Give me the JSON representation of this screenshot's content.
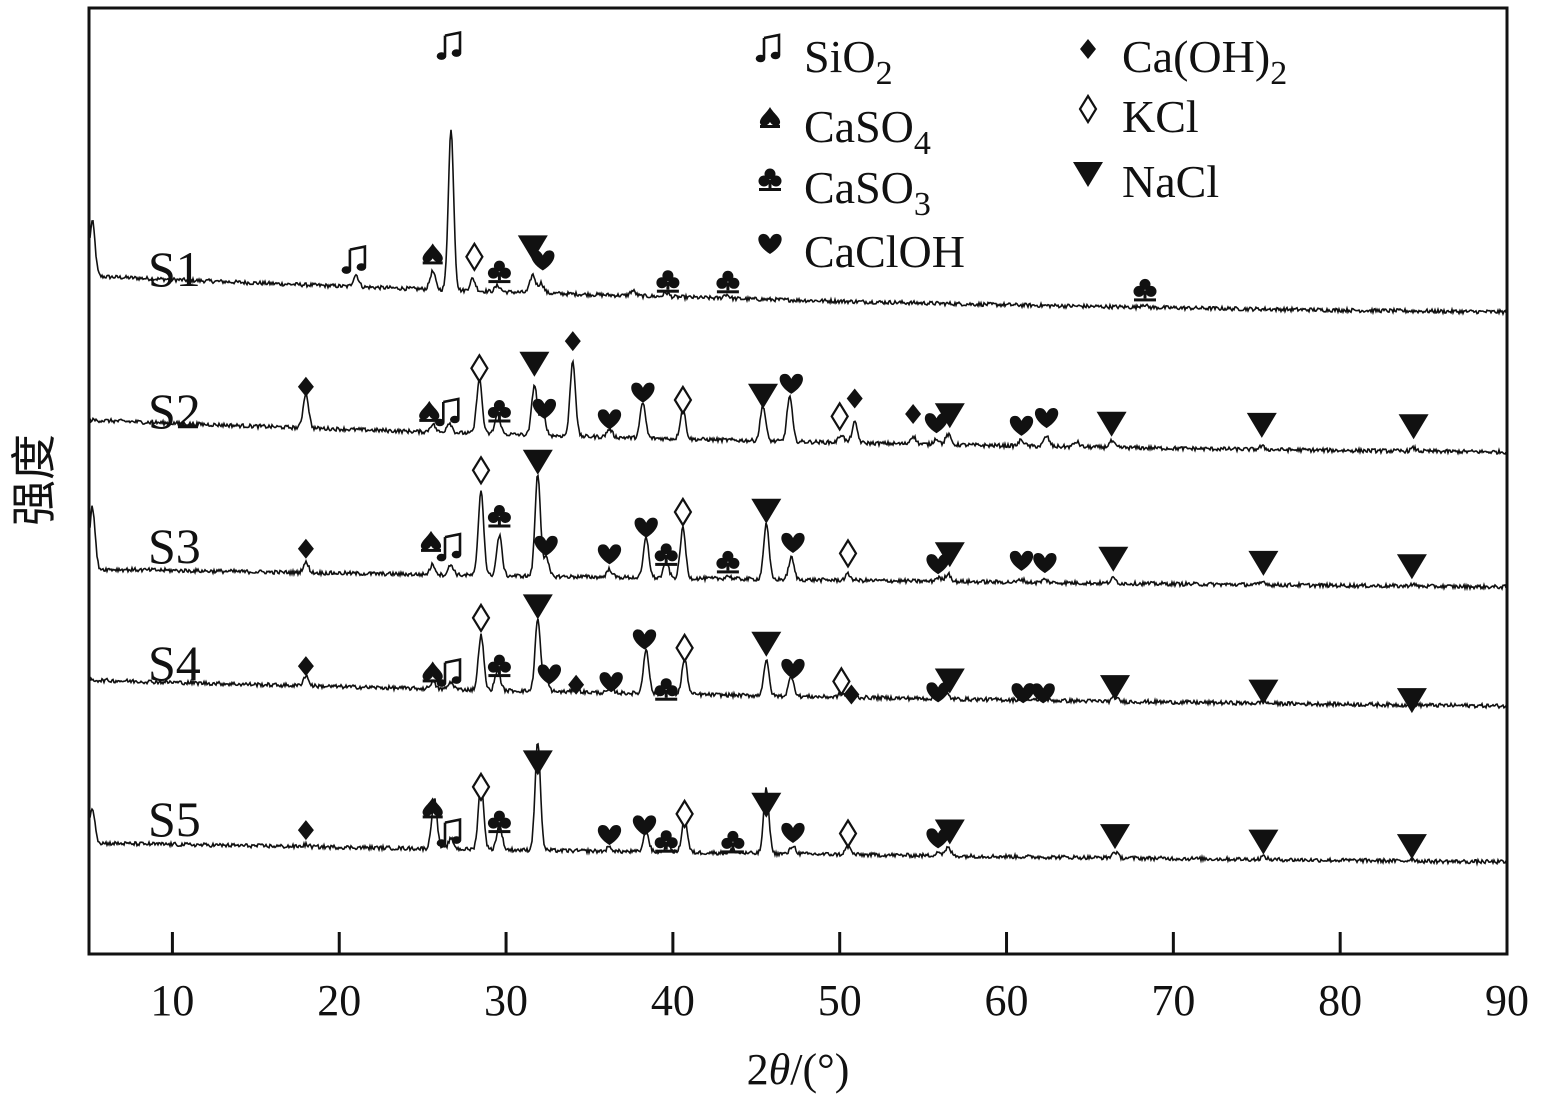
{
  "chart_data": {
    "type": "line",
    "title": "",
    "xlabel_prefix": "2",
    "xlabel_theta": "θ",
    "xlabel_suffix": "/(°)",
    "ylabel": "强度",
    "xlim": [
      5,
      90
    ],
    "xticks": [
      "10",
      "20",
      "30",
      "40",
      "50",
      "60",
      "70",
      "80",
      "90"
    ],
    "grid": false,
    "legend_position": "top-right",
    "legend": [
      {
        "symbol": "SiO2",
        "base": "SiO",
        "sub": "2"
      },
      {
        "symbol": "CaSO4",
        "base": "CaSO",
        "sub": "4"
      },
      {
        "symbol": "CaSO3",
        "base": "CaSO",
        "sub": "3"
      },
      {
        "symbol": "CaClOH",
        "base": "CaClOH",
        "sub": ""
      },
      {
        "symbol": "CaOH2",
        "base": "Ca(OH)",
        "sub": "2"
      },
      {
        "symbol": "KCl",
        "base": "KCl",
        "sub": ""
      },
      {
        "symbol": "NaCl",
        "base": "NaCl",
        "sub": ""
      }
    ],
    "series": [
      {
        "name": "S1",
        "baseline_start": 0.22,
        "baseline_end": 0.0,
        "peaks": [
          [
            5.2,
            0.55
          ],
          [
            21.0,
            0.12
          ],
          [
            25.6,
            0.18
          ],
          [
            26.7,
            1.6
          ],
          [
            28.0,
            0.12
          ],
          [
            29.5,
            0.06
          ],
          [
            31.6,
            0.18
          ],
          [
            32.1,
            0.1
          ],
          [
            37.6,
            0.05
          ],
          [
            39.6,
            0.04
          ],
          [
            43.2,
            0.04
          ],
          [
            68.2,
            0.03
          ]
        ],
        "markers": [
          {
            "sym": "SiO2",
            "x": 21.0,
            "h": 0.4
          },
          {
            "sym": "CaSO4",
            "x": 25.6,
            "h": 0.46
          },
          {
            "sym": "SiO2",
            "x": 26.7,
            "h": 2.55
          },
          {
            "sym": "KCl",
            "x": 28.1,
            "h": 0.45
          },
          {
            "sym": "CaSO3",
            "x": 29.6,
            "h": 0.3
          },
          {
            "sym": "NaCl",
            "x": 31.6,
            "h": 0.55
          },
          {
            "sym": "CaClOH",
            "x": 32.2,
            "h": 0.42
          },
          {
            "sym": "CaSO3",
            "x": 39.7,
            "h": 0.22
          },
          {
            "sym": "CaSO3",
            "x": 43.3,
            "h": 0.22
          },
          {
            "sym": "CaSO3",
            "x": 68.3,
            "h": 0.18
          }
        ]
      },
      {
        "name": "S2",
        "baseline_start": 0.2,
        "baseline_end": 0.0,
        "peaks": [
          [
            18.0,
            0.35
          ],
          [
            25.6,
            0.08
          ],
          [
            26.6,
            0.1
          ],
          [
            28.4,
            0.55
          ],
          [
            29.5,
            0.2
          ],
          [
            31.7,
            0.5
          ],
          [
            32.2,
            0.25
          ],
          [
            34.0,
            0.75
          ],
          [
            36.2,
            0.08
          ],
          [
            38.2,
            0.35
          ],
          [
            40.6,
            0.3
          ],
          [
            45.4,
            0.35
          ],
          [
            47.0,
            0.45
          ],
          [
            50.1,
            0.08
          ],
          [
            50.9,
            0.2
          ],
          [
            54.4,
            0.08
          ],
          [
            55.8,
            0.06
          ],
          [
            56.5,
            0.1
          ],
          [
            60.9,
            0.06
          ],
          [
            62.4,
            0.1
          ],
          [
            64.2,
            0.05
          ],
          [
            66.3,
            0.06
          ],
          [
            75.3,
            0.03
          ],
          [
            84.4,
            0.03
          ]
        ],
        "markers": [
          {
            "sym": "CaOH2",
            "x": 18.0,
            "h": 0.55
          },
          {
            "sym": "CaSO4",
            "x": 25.4,
            "h": 0.3
          },
          {
            "sym": "SiO2",
            "x": 26.6,
            "h": 0.3
          },
          {
            "sym": "KCl",
            "x": 28.4,
            "h": 0.75
          },
          {
            "sym": "CaSO3",
            "x": 29.6,
            "h": 0.32
          },
          {
            "sym": "NaCl",
            "x": 31.7,
            "h": 0.8
          },
          {
            "sym": "CaClOH",
            "x": 32.3,
            "h": 0.35
          },
          {
            "sym": "CaOH2",
            "x": 34.0,
            "h": 1.03
          },
          {
            "sym": "CaClOH",
            "x": 36.2,
            "h": 0.25
          },
          {
            "sym": "CaClOH",
            "x": 38.2,
            "h": 0.52
          },
          {
            "sym": "KCl",
            "x": 40.6,
            "h": 0.45
          },
          {
            "sym": "NaCl",
            "x": 45.4,
            "h": 0.5
          },
          {
            "sym": "CaClOH",
            "x": 47.1,
            "h": 0.62
          },
          {
            "sym": "KCl",
            "x": 50.0,
            "h": 0.3
          },
          {
            "sym": "CaOH2",
            "x": 50.9,
            "h": 0.48
          },
          {
            "sym": "CaOH2",
            "x": 54.4,
            "h": 0.33
          },
          {
            "sym": "CaClOH",
            "x": 55.8,
            "h": 0.24
          },
          {
            "sym": "NaCl",
            "x": 56.6,
            "h": 0.32
          },
          {
            "sym": "CaClOH",
            "x": 60.9,
            "h": 0.22
          },
          {
            "sym": "CaClOH",
            "x": 62.4,
            "h": 0.3
          },
          {
            "sym": "NaCl",
            "x": 66.3,
            "h": 0.25
          },
          {
            "sym": "NaCl",
            "x": 75.3,
            "h": 0.25
          },
          {
            "sym": "NaCl",
            "x": 84.4,
            "h": 0.25
          }
        ]
      },
      {
        "name": "S3",
        "baseline_start": 0.06,
        "baseline_end": 0.0,
        "peaks": [
          [
            5.2,
            0.62
          ],
          [
            18.0,
            0.1
          ],
          [
            25.6,
            0.1
          ],
          [
            26.7,
            0.1
          ],
          [
            28.5,
            0.85
          ],
          [
            29.6,
            0.4
          ],
          [
            31.9,
            1.02
          ],
          [
            32.4,
            0.18
          ],
          [
            36.2,
            0.08
          ],
          [
            38.4,
            0.4
          ],
          [
            39.6,
            0.15
          ],
          [
            40.6,
            0.5
          ],
          [
            43.3,
            0.03
          ],
          [
            45.6,
            0.55
          ],
          [
            47.1,
            0.22
          ],
          [
            50.5,
            0.06
          ],
          [
            55.9,
            0.04
          ],
          [
            56.5,
            0.08
          ],
          [
            60.9,
            0.03
          ],
          [
            62.3,
            0.03
          ],
          [
            66.4,
            0.05
          ],
          [
            75.4,
            0.03
          ],
          [
            84.3,
            0.02
          ]
        ],
        "markers": [
          {
            "sym": "CaOH2",
            "x": 18.0,
            "h": 0.28
          },
          {
            "sym": "CaSO4",
            "x": 25.5,
            "h": 0.35
          },
          {
            "sym": "SiO2",
            "x": 26.7,
            "h": 0.3
          },
          {
            "sym": "KCl",
            "x": 28.5,
            "h": 1.08
          },
          {
            "sym": "CaSO3",
            "x": 29.6,
            "h": 0.62
          },
          {
            "sym": "NaCl",
            "x": 31.9,
            "h": 1.17
          },
          {
            "sym": "CaClOH",
            "x": 32.4,
            "h": 0.33
          },
          {
            "sym": "CaClOH",
            "x": 36.2,
            "h": 0.25
          },
          {
            "sym": "CaClOH",
            "x": 38.4,
            "h": 0.52
          },
          {
            "sym": "CaSO3",
            "x": 39.6,
            "h": 0.25
          },
          {
            "sym": "KCl",
            "x": 40.6,
            "h": 0.68
          },
          {
            "sym": "CaSO3",
            "x": 43.3,
            "h": 0.18
          },
          {
            "sym": "NaCl",
            "x": 45.6,
            "h": 0.7
          },
          {
            "sym": "CaClOH",
            "x": 47.2,
            "h": 0.38
          },
          {
            "sym": "KCl",
            "x": 50.5,
            "h": 0.28
          },
          {
            "sym": "CaClOH",
            "x": 55.9,
            "h": 0.18
          },
          {
            "sym": "NaCl",
            "x": 56.6,
            "h": 0.28
          },
          {
            "sym": "CaClOH",
            "x": 60.9,
            "h": 0.22
          },
          {
            "sym": "CaClOH",
            "x": 62.3,
            "h": 0.2
          },
          {
            "sym": "NaCl",
            "x": 66.4,
            "h": 0.25
          },
          {
            "sym": "NaCl",
            "x": 75.4,
            "h": 0.22
          },
          {
            "sym": "NaCl",
            "x": 84.3,
            "h": 0.2
          }
        ]
      },
      {
        "name": "S4",
        "baseline_start": 0.12,
        "baseline_end": 0.0,
        "peaks": [
          [
            18.0,
            0.1
          ],
          [
            25.6,
            0.07
          ],
          [
            26.7,
            0.07
          ],
          [
            28.5,
            0.55
          ],
          [
            29.5,
            0.2
          ],
          [
            31.9,
            0.72
          ],
          [
            32.4,
            0.12
          ],
          [
            34.2,
            0.05
          ],
          [
            36.3,
            0.05
          ],
          [
            38.4,
            0.45
          ],
          [
            39.6,
            0.1
          ],
          [
            40.7,
            0.35
          ],
          [
            45.6,
            0.35
          ],
          [
            47.1,
            0.2
          ],
          [
            50.1,
            0.04
          ],
          [
            50.7,
            0.06
          ],
          [
            55.8,
            0.04
          ],
          [
            56.4,
            0.05
          ],
          [
            61.0,
            0.03
          ],
          [
            62.2,
            0.03
          ],
          [
            66.5,
            0.04
          ],
          [
            75.4,
            0.02
          ],
          [
            84.3,
            0.02
          ]
        ],
        "markers": [
          {
            "sym": "CaOH2",
            "x": 18.0,
            "h": 0.28
          },
          {
            "sym": "CaSO4",
            "x": 25.6,
            "h": 0.22
          },
          {
            "sym": "SiO2",
            "x": 26.7,
            "h": 0.22
          },
          {
            "sym": "KCl",
            "x": 28.5,
            "h": 0.78
          },
          {
            "sym": "CaSO3",
            "x": 29.6,
            "h": 0.3
          },
          {
            "sym": "NaCl",
            "x": 31.9,
            "h": 0.9
          },
          {
            "sym": "CaClOH",
            "x": 32.6,
            "h": 0.22
          },
          {
            "sym": "CaOH2",
            "x": 34.2,
            "h": 0.12
          },
          {
            "sym": "CaClOH",
            "x": 36.3,
            "h": 0.15
          },
          {
            "sym": "CaClOH",
            "x": 38.3,
            "h": 0.58
          },
          {
            "sym": "CaSO3",
            "x": 39.6,
            "h": 0.08
          },
          {
            "sym": "KCl",
            "x": 40.7,
            "h": 0.5
          },
          {
            "sym": "NaCl",
            "x": 45.6,
            "h": 0.55
          },
          {
            "sym": "CaClOH",
            "x": 47.2,
            "h": 0.3
          },
          {
            "sym": "KCl",
            "x": 50.1,
            "h": 0.18
          },
          {
            "sym": "CaOH2",
            "x": 50.7,
            "h": 0.05
          },
          {
            "sym": "CaClOH",
            "x": 55.9,
            "h": 0.08
          },
          {
            "sym": "NaCl",
            "x": 56.6,
            "h": 0.2
          },
          {
            "sym": "CaClOH",
            "x": 61.0,
            "h": 0.08
          },
          {
            "sym": "CaClOH",
            "x": 62.2,
            "h": 0.08
          },
          {
            "sym": "NaCl",
            "x": 66.5,
            "h": 0.15
          },
          {
            "sym": "NaCl",
            "x": 75.4,
            "h": 0.12
          },
          {
            "sym": "NaCl",
            "x": 84.3,
            "h": 0.05
          }
        ]
      },
      {
        "name": "S5",
        "baseline_start": 0.05,
        "baseline_end": 0.0,
        "peaks": [
          [
            5.2,
            0.35
          ],
          [
            18.0,
            0.02
          ],
          [
            25.7,
            0.5
          ],
          [
            26.7,
            0.1
          ],
          [
            28.5,
            0.68
          ],
          [
            29.6,
            0.25
          ],
          [
            31.9,
            1.08
          ],
          [
            36.2,
            0.04
          ],
          [
            38.4,
            0.2
          ],
          [
            39.7,
            0.08
          ],
          [
            40.7,
            0.35
          ],
          [
            43.6,
            0.03
          ],
          [
            45.6,
            0.65
          ],
          [
            47.2,
            0.08
          ],
          [
            50.5,
            0.08
          ],
          [
            55.9,
            0.04
          ],
          [
            56.5,
            0.08
          ],
          [
            66.5,
            0.06
          ],
          [
            75.4,
            0.03
          ],
          [
            84.3,
            0.02
          ]
        ],
        "markers": [
          {
            "sym": "CaOH2",
            "x": 18.0,
            "h": 0.2
          },
          {
            "sym": "CaSO4",
            "x": 25.6,
            "h": 0.42
          },
          {
            "sym": "SiO2",
            "x": 26.7,
            "h": 0.18
          },
          {
            "sym": "KCl",
            "x": 28.5,
            "h": 0.65
          },
          {
            "sym": "CaSO3",
            "x": 29.6,
            "h": 0.3
          },
          {
            "sym": "NaCl",
            "x": 31.9,
            "h": 0.9
          },
          {
            "sym": "CaClOH",
            "x": 36.2,
            "h": 0.18
          },
          {
            "sym": "CaClOH",
            "x": 38.3,
            "h": 0.28
          },
          {
            "sym": "CaSO3",
            "x": 39.6,
            "h": 0.12
          },
          {
            "sym": "KCl",
            "x": 40.7,
            "h": 0.4
          },
          {
            "sym": "CaSO3",
            "x": 43.6,
            "h": 0.12
          },
          {
            "sym": "NaCl",
            "x": 45.6,
            "h": 0.5
          },
          {
            "sym": "CaClOH",
            "x": 47.2,
            "h": 0.22
          },
          {
            "sym": "KCl",
            "x": 50.5,
            "h": 0.22
          },
          {
            "sym": "CaClOH",
            "x": 55.9,
            "h": 0.18
          },
          {
            "sym": "NaCl",
            "x": 56.6,
            "h": 0.25
          },
          {
            "sym": "NaCl",
            "x": 66.5,
            "h": 0.22
          },
          {
            "sym": "NaCl",
            "x": 75.4,
            "h": 0.18
          },
          {
            "sym": "NaCl",
            "x": 84.3,
            "h": 0.15
          }
        ]
      }
    ]
  }
}
